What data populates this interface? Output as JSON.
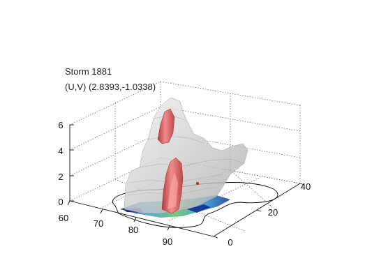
{
  "figure": {
    "title_line1": "Storm 1881",
    "title_line2": "(U,V) (2.8393,-1.0338)"
  },
  "chart_data": {
    "type": "surface3d",
    "title": "Storm 1881",
    "subtitle": "(U,V) (2.8393,-1.0338)",
    "x_axis": {
      "label": "",
      "range": [
        60,
        100
      ],
      "ticks": [
        60,
        70,
        80,
        90
      ]
    },
    "y_axis": {
      "label": "",
      "range": [
        0,
        40
      ],
      "ticks": [
        0,
        20,
        40
      ]
    },
    "z_axis": {
      "label": "",
      "range": [
        0,
        6
      ],
      "ticks": [
        0,
        2,
        4,
        6
      ]
    },
    "grid": true,
    "layers": [
      {
        "name": "gray-isosurface",
        "color": "#d8d8d8"
      },
      {
        "name": "red-isosurface",
        "color": "#e07070"
      },
      {
        "name": "colored-floor",
        "color": "#3a8fd0"
      }
    ],
    "colors": {
      "outline": "#000000",
      "floor_dark": "#1a2a8a",
      "floor_mid": "#3aa0d8",
      "floor_green": "#6cc06c"
    }
  }
}
